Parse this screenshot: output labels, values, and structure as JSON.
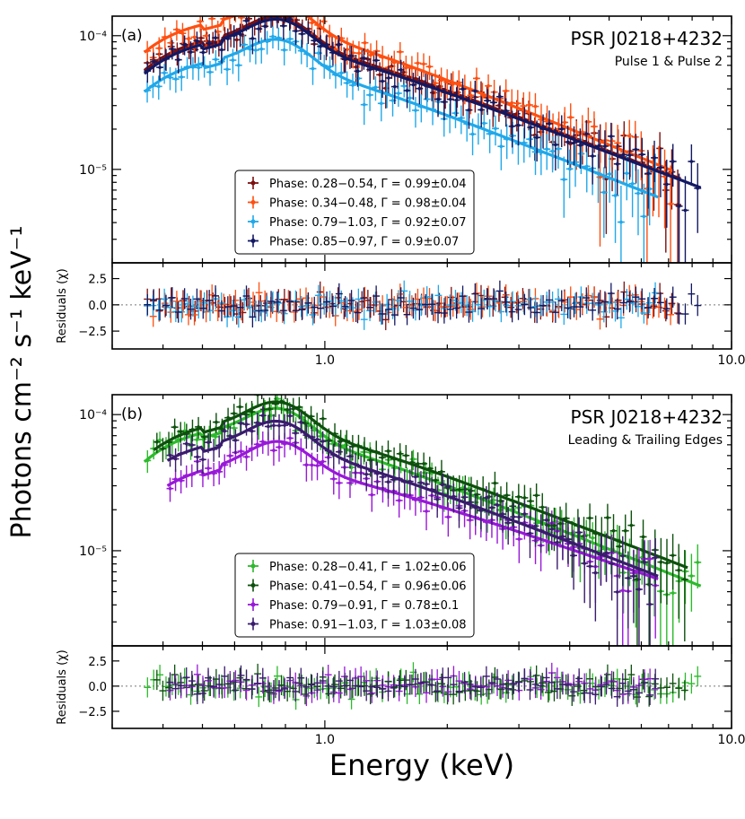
{
  "figure": {
    "ylabel": "Photons cm⁻² s⁻¹ keV⁻¹",
    "xlabel": "Energy (keV)"
  },
  "chart_data": [
    {
      "type": "scatter",
      "panel_label": "(a)",
      "title": "PSR J0218+4232",
      "subtitle": "Pulse 1 & Pulse 2",
      "xscale": "log",
      "yscale": "log",
      "xlim": [
        0.3,
        10.0
      ],
      "ylim": [
        2e-06,
        0.00014
      ],
      "x_ticks": [
        "1.0",
        "10.0"
      ],
      "y_ticks": [
        "10⁻⁴",
        "10⁻⁵"
      ],
      "legend_position": "lower-center",
      "series": [
        {
          "name": "Phase: 0.28−0.54, Γ = 0.99±0.04",
          "color": "#7d1010",
          "model_start": [
            0.36,
            5.5e-05
          ],
          "model_end": [
            7.5,
            8.5e-06
          ]
        },
        {
          "name": "Phase: 0.34−0.48, Γ = 0.98±0.04",
          "color": "#ff4f10",
          "model_start": [
            0.36,
            7.5e-05
          ],
          "model_end": [
            7.2,
            9.7e-06
          ]
        },
        {
          "name": "Phase: 0.79−1.03, Γ = 0.92±0.07",
          "color": "#20a8ea",
          "model_start": [
            0.36,
            3.8e-05
          ],
          "model_end": [
            6.6,
            6.2e-06
          ]
        },
        {
          "name": "Phase: 0.85−0.97, Γ = 0.9±0.07",
          "color": "#121862",
          "model_start": [
            0.36,
            5.2e-05
          ],
          "model_end": [
            8.4,
            7.3e-06
          ]
        }
      ],
      "residuals": {
        "ylabel": "Residuals (χ)",
        "ylim": [
          -4.2,
          4.0
        ],
        "y_ticks": [
          "2.5",
          "0.0",
          "−2.5"
        ],
        "x_ticks": [
          "1.0",
          "10.0"
        ]
      }
    },
    {
      "type": "scatter",
      "panel_label": "(b)",
      "title": "PSR J0218+4232",
      "subtitle": "Leading & Trailing Edges",
      "xscale": "log",
      "yscale": "log",
      "xlim": [
        0.3,
        10.0
      ],
      "ylim": [
        2e-06,
        0.00014
      ],
      "x_ticks": [
        "1.0",
        "10.0"
      ],
      "y_ticks": [
        "10⁻⁴",
        "10⁻⁵"
      ],
      "legend_position": "lower-center",
      "series": [
        {
          "name": "Phase: 0.28−0.41, Γ = 1.02±0.06",
          "color": "#2cba2c",
          "model_start": [
            0.36,
            4.5e-05
          ],
          "model_end": [
            8.4,
            5.5e-06
          ]
        },
        {
          "name": "Phase: 0.41−0.54, Γ = 0.96±0.06",
          "color": "#0c500c",
          "model_start": [
            0.38,
            5.5e-05
          ],
          "model_end": [
            7.8,
            7.5e-06
          ]
        },
        {
          "name": "Phase: 0.79−0.91, Γ = 0.78±0.1",
          "color": "#9818d8",
          "model_start": [
            0.41,
            3e-05
          ],
          "model_end": [
            6.6,
            6.2e-06
          ]
        },
        {
          "name": "Phase: 0.91−1.03, Γ = 1.03±0.08",
          "color": "#3a1b6e",
          "model_start": [
            0.41,
            4.6e-05
          ],
          "model_end": [
            6.6,
            6.5e-06
          ]
        }
      ],
      "residuals": {
        "ylabel": "Residuals (χ)",
        "ylim": [
          -4.2,
          4.0
        ],
        "y_ticks": [
          "2.5",
          "0.0",
          "−2.5"
        ],
        "x_ticks": [
          "1.0",
          "10.0"
        ]
      }
    }
  ]
}
